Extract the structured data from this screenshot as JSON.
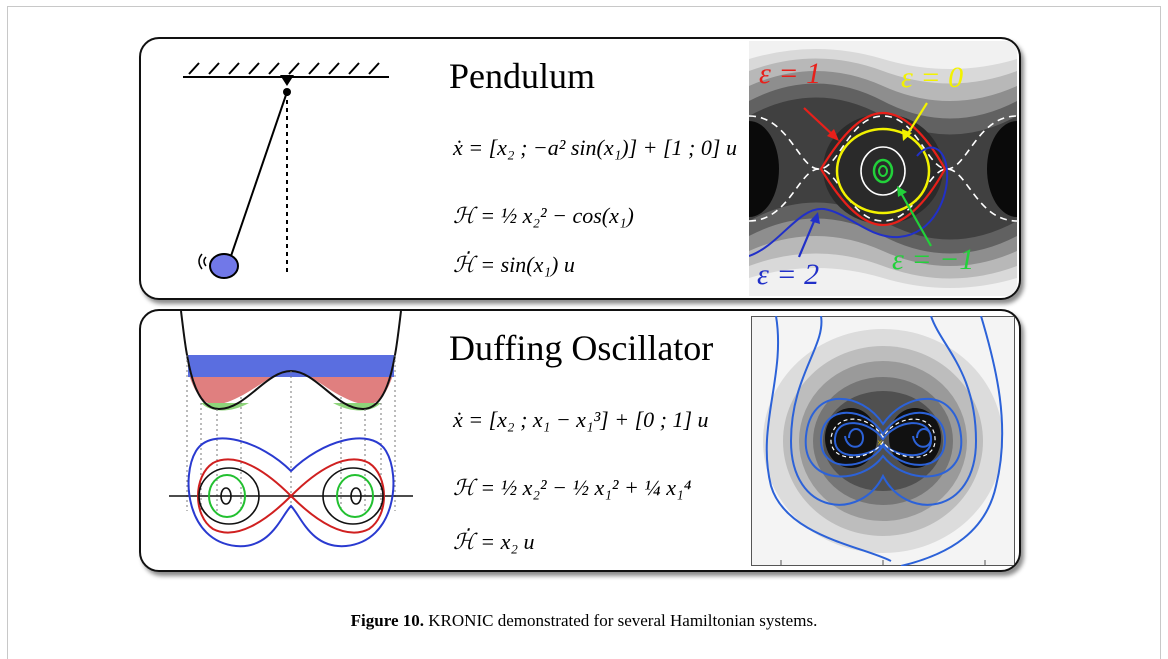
{
  "caption": {
    "label": "Figure 10.",
    "text": " KRONIC demonstrated for several Hamiltonian systems."
  },
  "pendulum": {
    "title": "Pendulum",
    "eq_xdot": "ẋ = [x₂ ; −a² sin(x₁)] + [1 ; 0] u",
    "eq_H": "ℋ = ½ x₂² − cos(x₁)",
    "eq_Hdot": "ℋ̇ = sin(x₁) u",
    "eps_labels": {
      "red": "ε = 1",
      "yellow": "ε = 0",
      "blue": "ε = 2",
      "green": "ε = −1"
    },
    "colors": {
      "red": "#e8201a",
      "yellow": "#f2f200",
      "blue": "#2130c8",
      "green": "#22d13a"
    }
  },
  "duffing": {
    "title": "Duffing Oscillator",
    "eq_xdot": "ẋ = [x₂ ; x₁ − x₁³] + [0 ; 1] u",
    "eq_H": "ℋ = ½ x₂² − ½ x₁² + ¼ x₁⁴",
    "eq_Hdot": "ℋ̇ = x₂ u"
  }
}
